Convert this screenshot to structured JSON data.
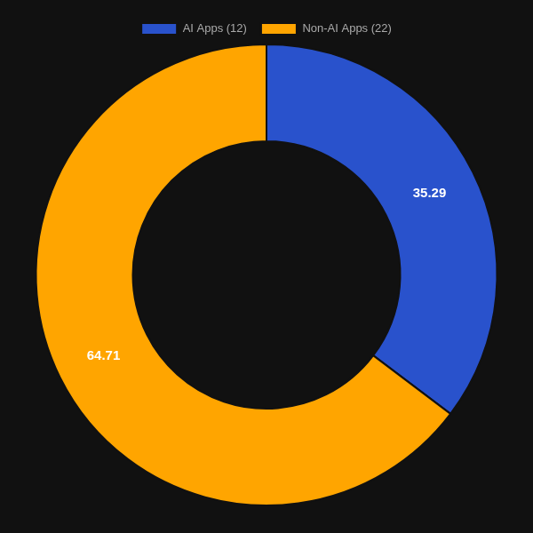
{
  "chart_data": {
    "type": "doughnut",
    "categories": [
      "AI Apps (12)",
      "Non-AI Apps (22)"
    ],
    "values": [
      35.29,
      64.71
    ],
    "colors": [
      "#2952CC",
      "#FFA500"
    ],
    "legend": "top",
    "data_labels": true
  }
}
